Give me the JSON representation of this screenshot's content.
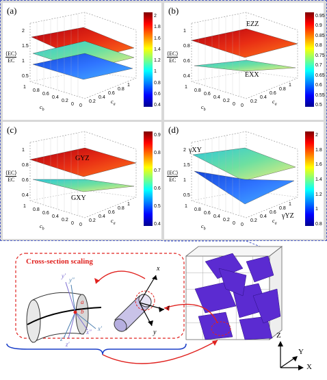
{
  "panels": [
    {
      "id": "a",
      "label": "(a)",
      "ylabel_top": "⟨EC⟩",
      "ylabel_bottom": "EC",
      "x_axis": "c_b",
      "y_axis": "c_a",
      "z_ticks": [
        "2",
        "1.5",
        "1",
        "0.5"
      ],
      "cbar_ticks": [
        "2",
        "1.8",
        "1.6",
        "1.4",
        "1.2",
        "1",
        "0.8",
        "0.6",
        "0.4"
      ],
      "xy_ticks_left": [
        "1",
        "0.8",
        "0.6",
        "0.4",
        "0.2",
        "0"
      ],
      "xy_ticks_right": [
        "0",
        "0.2",
        "0.4",
        "0.6",
        "0.8",
        "1"
      ]
    },
    {
      "id": "b",
      "label": "(b)",
      "ylabel_top": "⟨EC⟩",
      "ylabel_bottom": "EC",
      "x_axis": "c_b",
      "y_axis": "c_a",
      "z_ticks": [
        "1",
        "0.8",
        "0.6",
        "0.4"
      ],
      "cbar_ticks": [
        "0.95",
        "0.9",
        "0.85",
        "0.8",
        "0.75",
        "0.7",
        "0.65",
        "0.6",
        "0.55",
        "0.5"
      ],
      "xy_ticks_left": [
        "1",
        "0.8",
        "0.6",
        "0.4",
        "0.2",
        "0"
      ],
      "xy_ticks_right": [
        "0",
        "0.2",
        "0.4",
        "0.6",
        "0.8",
        "1"
      ],
      "surface_labels": [
        "EZZ",
        "EXX"
      ]
    },
    {
      "id": "c",
      "label": "(c)",
      "ylabel_top": "⟨EC⟩",
      "ylabel_bottom": "EC",
      "x_axis": "c_b",
      "y_axis": "c_a",
      "z_ticks": [
        "1",
        "0.8",
        "0.6",
        "0.4"
      ],
      "cbar_ticks": [
        "0.9",
        "0.8",
        "0.7",
        "0.6",
        "0.5",
        "0.4"
      ],
      "xy_ticks_left": [
        "1",
        "0.8",
        "0.6",
        "0.4",
        "0.2",
        "0"
      ],
      "xy_ticks_right": [
        "0",
        "0.2",
        "0.4",
        "0.6",
        "0.8",
        "1"
      ],
      "surface_labels": [
        "GYZ",
        "GXY"
      ]
    },
    {
      "id": "d",
      "label": "(d)",
      "ylabel_top": "⟨EC⟩",
      "ylabel_bottom": "EC",
      "x_axis": "c_b",
      "y_axis": "c_a",
      "z_ticks": [
        "2",
        "1.5",
        "1",
        "0.5"
      ],
      "cbar_ticks": [
        "2",
        "1.8",
        "1.6",
        "1.4",
        "1.2",
        "1",
        "0.8"
      ],
      "xy_ticks_left": [
        "1",
        "0.8",
        "0.6",
        "0.4",
        "0.2",
        "0"
      ],
      "xy_ticks_right": [
        "0",
        "0.2",
        "0.4",
        "0.6",
        "0.8",
        "1"
      ],
      "surface_labels": [
        "γXY",
        "γYZ"
      ]
    }
  ],
  "cross_section": {
    "title": "Cross-section scaling",
    "cyl_axes": {
      "x": "x",
      "z": "z",
      "y": "y"
    },
    "tube_axes": {
      "yp": "y′",
      "ypp": "y″",
      "xp": "x′",
      "xpp": "x″",
      "zp": "z′",
      "zpp": "z″",
      "a": "a",
      "b": "b"
    }
  },
  "global_axes": {
    "z": "Z",
    "y": "Y",
    "x": "X"
  },
  "colors": {
    "panel_bg": "#d8d8d8",
    "dash_blue": "#4a5bc4",
    "red": "#e0211e",
    "fiber": "#5b2bd1"
  }
}
